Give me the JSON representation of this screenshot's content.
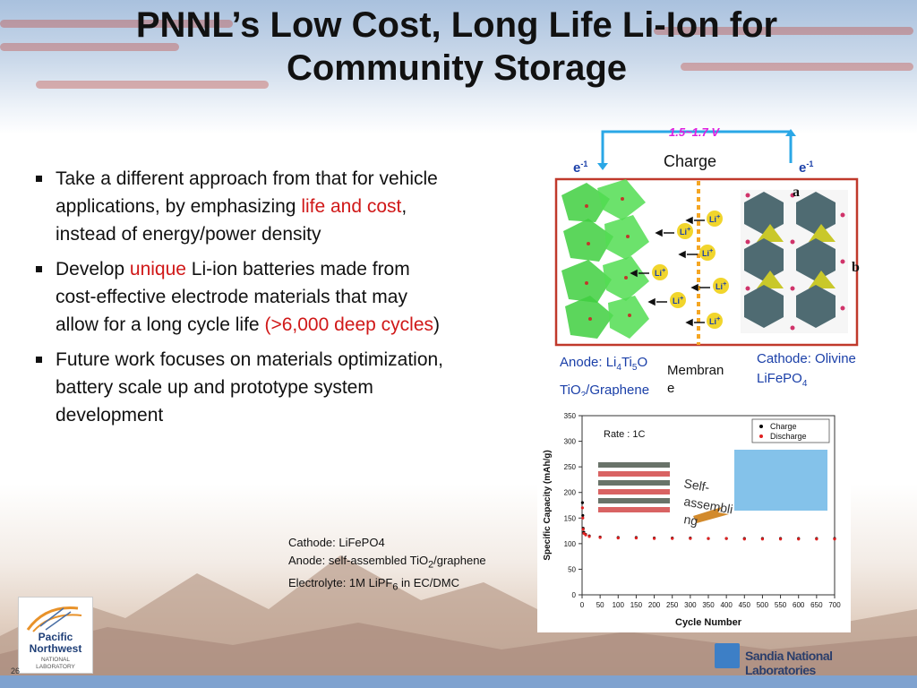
{
  "title_line1": "PNNL’s Low Cost, Long Life Li-Ion for",
  "title_line2": "Community Storage",
  "bullets": {
    "b1_pre": "Take a different approach from that for vehicle applications, by emphasizing ",
    "b1_red": "life and cost",
    "b1_post": ", instead of energy/power density",
    "b2_pre": "Develop ",
    "b2_red1": "unique",
    "b2_mid": " Li-ion batteries made from cost-effective electrode materials that may allow for a long cycle life ",
    "b2_red2": "(>6,000 deep cycles",
    "b2_post": ")",
    "b3": "Future work focuses on materials optimization, battery scale up and prototype system development"
  },
  "specs": {
    "cathode": "Cathode: LiFePO4",
    "anode_pre": "Anode: self-assembled  TiO",
    "anode_sub": "2",
    "anode_post": "/graphene",
    "electrolyte_pre": "Electrolyte: 1M LiPF",
    "electrolyte_sub": "6",
    "electrolyte_post": " in EC/DMC"
  },
  "diagram": {
    "voltage": "1.5~1.7 V",
    "charge": "Charge",
    "e_left": "e",
    "e_left_sup": "-1",
    "e_right": "e",
    "e_right_sup": "-1",
    "label_a": "a",
    "label_b": "b",
    "li": "Li",
    "li_sup": "+",
    "anode_l1_pre": "Anode: Li",
    "anode_l1_s1": "4",
    "anode_l1_mid": "Ti",
    "anode_l1_s2": "5",
    "anode_l1_post": "O",
    "anode_l2_pre": "TiO",
    "anode_l2_sub": "2",
    "anode_l2_post": "/Graphene",
    "membrane_l1": "Membran",
    "membrane_l2": "e",
    "cathode_l1": "Cathode: Olivine",
    "cathode_l2_pre": "LiFePO",
    "cathode_l2_sub": "4"
  },
  "chart_data": {
    "type": "scatter",
    "annotation": "Rate : 1C",
    "inset_text_l1": "Self-",
    "inset_text_l2": "assembli",
    "inset_text_l3": "ng",
    "xlabel": "Cycle Number",
    "ylabel": "Specific Capacity (mAh/g)",
    "xlim": [
      0,
      700
    ],
    "ylim": [
      0,
      350
    ],
    "xticks": [
      "0",
      "50",
      "100",
      "150",
      "200",
      "250",
      "300",
      "350",
      "400",
      "450",
      "500",
      "550",
      "600",
      "650",
      "700"
    ],
    "yticks": [
      "0",
      "50",
      "100",
      "150",
      "200",
      "250",
      "300",
      "350"
    ],
    "series": [
      {
        "name": "Charge",
        "color": "#000000",
        "x": [
          1,
          2,
          3,
          5,
          10,
          20,
          50,
          100,
          150,
          200,
          250,
          300,
          350,
          400,
          450,
          500,
          550,
          600,
          650,
          700
        ],
        "y": [
          180,
          155,
          130,
          122,
          118,
          115,
          113,
          112,
          112,
          111,
          111,
          111,
          110,
          110,
          110,
          110,
          110,
          110,
          110,
          110
        ]
      },
      {
        "name": "Discharge",
        "color": "#e02020",
        "x": [
          1,
          2,
          3,
          5,
          10,
          20,
          50,
          100,
          150,
          200,
          250,
          300,
          350,
          400,
          450,
          500,
          550,
          600,
          650,
          700
        ],
        "y": [
          170,
          150,
          128,
          120,
          117,
          114,
          112,
          111,
          111,
          110,
          110,
          110,
          110,
          110,
          109,
          109,
          109,
          109,
          109,
          109
        ]
      }
    ],
    "legend_position": "top-right"
  },
  "logo": {
    "pnnl_l1": "Pacific",
    "pnnl_l2": "Northwest",
    "pnnl_l3": "NATIONAL",
    "pnnl_l4": "LABORATORY",
    "sandia": "Sandia National Laboratories"
  },
  "page_number": "26"
}
